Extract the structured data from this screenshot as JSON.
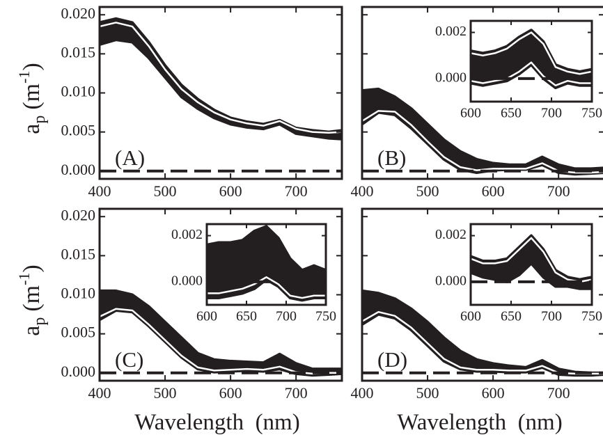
{
  "chart_data": [
    {
      "type": "line",
      "label": "(A)",
      "zero_line": true,
      "xlim": [
        400,
        770
      ],
      "ylim": [
        -0.001,
        0.021
      ],
      "xticks": [
        400,
        500,
        600,
        700
      ],
      "yticks": [
        {
          "value": 0,
          "label": "0.000"
        },
        {
          "value": 0.005,
          "label": "0.005"
        },
        {
          "value": 0.01,
          "label": "0.010"
        },
        {
          "value": 0.015,
          "label": "0.015"
        },
        {
          "value": 0.02,
          "label": "0.020"
        }
      ],
      "ytick_labels": true,
      "ylabel": {
        "base": "a",
        "sub": "p",
        "unit": "(m",
        "sup": "-1",
        "end": ")"
      },
      "x": [
        400,
        425,
        450,
        475,
        500,
        525,
        550,
        575,
        600,
        625,
        650,
        675,
        700,
        725,
        750,
        770
      ],
      "series": [
        {
          "color": "#231f20",
          "values": [
            0.019,
            0.0195,
            0.019,
            0.0165,
            0.0135,
            0.011,
            0.0092,
            0.0078,
            0.0068,
            0.0063,
            0.006,
            0.0065,
            0.0055,
            0.0052,
            0.005,
            0.0052
          ],
          "lower": [
            0.0162,
            0.0168,
            0.0165,
            0.0145,
            0.012,
            0.0095,
            0.008,
            0.0068,
            0.006,
            0.0056,
            0.0054,
            0.006,
            0.0048,
            0.0045,
            0.0042,
            0.0041
          ]
        },
        {
          "color": "#ffffff",
          "values": [
            0.0185,
            0.019,
            0.0185,
            0.016,
            0.013,
            0.0105,
            0.0088,
            0.0075,
            0.0066,
            0.0061,
            0.0058,
            0.0064,
            0.0054,
            0.005,
            0.0049,
            0.005
          ]
        }
      ]
    },
    {
      "type": "line",
      "label": "(B)",
      "zero_line": true,
      "xlim": [
        400,
        770
      ],
      "ylim": [
        -0.001,
        0.021
      ],
      "xticks": [
        400,
        500,
        600,
        700
      ],
      "yticks": [
        0,
        0.005,
        0.01,
        0.015,
        0.02
      ],
      "ytick_labels": false,
      "x": [
        400,
        425,
        450,
        475,
        500,
        525,
        550,
        575,
        600,
        625,
        650,
        675,
        700,
        725,
        750,
        770
      ],
      "series": [
        {
          "color": "#231f20",
          "values": [
            0.0103,
            0.0105,
            0.0095,
            0.008,
            0.006,
            0.004,
            0.0025,
            0.0015,
            0.001,
            0.0008,
            0.0008,
            0.0018,
            0.0008,
            0.0003,
            0.0003,
            0.0004
          ],
          "lower": [
            0.006,
            0.0075,
            0.0072,
            0.0055,
            0.0035,
            0.0015,
            0.0002,
            -0.0002,
            0.0001,
            0.0002,
            0.0002,
            0.0008,
            -0.0002,
            -0.0004,
            -0.0003,
            -0.0002
          ]
        },
        {
          "color": "#ffffff",
          "values": [
            0.0064,
            0.0077,
            0.0076,
            0.0059,
            0.0038,
            0.0018,
            0.0005,
            0.0001,
            0.0003,
            0.0003,
            0.0003,
            0.001,
            0.0,
            -0.0002,
            -0.0002,
            -0.0001
          ]
        }
      ]
    },
    {
      "type": "line",
      "label": "(C)",
      "zero_line": true,
      "xlim": [
        400,
        770
      ],
      "ylim": [
        -0.001,
        0.021
      ],
      "xticks": [
        400,
        500,
        600,
        700
      ],
      "yticks": [
        {
          "value": 0,
          "label": "0.000"
        },
        {
          "value": 0.005,
          "label": "0.005"
        },
        {
          "value": 0.01,
          "label": "0.010"
        },
        {
          "value": 0.015,
          "label": "0.015"
        },
        {
          "value": 0.02,
          "label": "0.020"
        }
      ],
      "ytick_labels": true,
      "ylabel": {
        "base": "a",
        "sub": "p",
        "unit": "(m",
        "sup": "-1",
        "end": ")"
      },
      "xlabel": "Wavelength  (nm)",
      "x": [
        400,
        425,
        450,
        475,
        500,
        525,
        550,
        575,
        600,
        625,
        650,
        675,
        700,
        725,
        750,
        770
      ],
      "series": [
        {
          "color": "#231f20",
          "values": [
            0.0105,
            0.0105,
            0.01,
            0.0085,
            0.0065,
            0.0045,
            0.0025,
            0.0017,
            0.0015,
            0.0014,
            0.0013,
            0.0024,
            0.0012,
            0.0005,
            0.0005,
            0.0005
          ],
          "lower": [
            0.0068,
            0.008,
            0.0078,
            0.006,
            0.004,
            0.002,
            0.0005,
            0.0001,
            0.0002,
            0.0003,
            0.0002,
            0.0005,
            -0.0001,
            -0.0003,
            -0.0002,
            -0.0001
          ]
        },
        {
          "color": "#ffffff",
          "values": [
            0.0072,
            0.0082,
            0.008,
            0.0062,
            0.0042,
            0.0022,
            0.0007,
            0.0003,
            0.0004,
            0.0005,
            0.0004,
            0.0008,
            0.0001,
            -0.0001,
            0.0,
            0.0
          ]
        }
      ]
    },
    {
      "type": "line",
      "label": "(D)",
      "zero_line": true,
      "xlim": [
        400,
        770
      ],
      "ylim": [
        -0.001,
        0.021
      ],
      "xticks": [
        400,
        500,
        600,
        700
      ],
      "yticks": [
        0,
        0.005,
        0.01,
        0.015,
        0.02
      ],
      "ytick_labels": false,
      "xlabel": "Wavelength  (nm)",
      "x": [
        400,
        425,
        450,
        475,
        500,
        525,
        550,
        575,
        600,
        625,
        650,
        675,
        700,
        725,
        750,
        770
      ],
      "series": [
        {
          "color": "#231f20",
          "values": [
            0.0105,
            0.0102,
            0.0095,
            0.0082,
            0.0065,
            0.0045,
            0.0028,
            0.0017,
            0.0012,
            0.0009,
            0.0007,
            0.0016,
            0.0005,
            0.0001,
            0.0,
            0.0
          ],
          "lower": [
            0.0062,
            0.0075,
            0.007,
            0.0055,
            0.0035,
            0.0015,
            0.0005,
            0.0002,
            0.0002,
            0.0001,
            0.0001,
            0.0007,
            -0.0002,
            -0.0003,
            -0.0003,
            -0.0002
          ]
        },
        {
          "color": "#ffffff",
          "values": [
            0.0066,
            0.0078,
            0.0073,
            0.0058,
            0.0038,
            0.0018,
            0.0007,
            0.0004,
            0.0004,
            0.0003,
            0.0003,
            0.0009,
            0.0,
            -0.0001,
            -0.0001,
            -0.0001
          ]
        }
      ]
    },
    {
      "type": "line",
      "zero_line": true,
      "xlim": [
        600,
        750
      ],
      "ylim": [
        -0.001,
        0.0025
      ],
      "xticks": [
        600,
        650,
        700,
        750
      ],
      "yticks": [
        {
          "value": 0,
          "label": "0.000"
        },
        {
          "value": 0.002,
          "label": "0.002"
        }
      ],
      "ytick_labels": true,
      "x": [
        600,
        615,
        630,
        645,
        660,
        675,
        690,
        705,
        720,
        735,
        750
      ],
      "series": [
        {
          "color": "#231f20",
          "values": [
            0.0012,
            0.0011,
            0.0012,
            0.0014,
            0.0018,
            0.0021,
            0.0016,
            0.0006,
            0.0004,
            0.0003,
            0.0004
          ],
          "lower": [
            -0.0002,
            -0.0003,
            -0.0002,
            -0.0001,
            0.0002,
            0.0006,
            0.0,
            -0.0004,
            -0.0002,
            -0.0003,
            -0.0003
          ]
        },
        {
          "color": "#ffffff",
          "values": [
            0.0011,
            0.001,
            0.0011,
            0.0013,
            0.0017,
            0.002,
            0.0015,
            0.0005,
            0.0003,
            0.0002,
            0.0003
          ]
        },
        {
          "color": "#ffffff",
          "values": [
            -0.0001,
            -0.0002,
            -0.0001,
            0.0,
            0.0003,
            0.0007,
            0.0001,
            -0.0003,
            -0.0001,
            -0.0002,
            -0.0002
          ]
        }
      ]
    },
    {
      "type": "line",
      "zero_line": true,
      "xlim": [
        600,
        750
      ],
      "ylim": [
        -0.001,
        0.0025
      ],
      "xticks": [
        600,
        650,
        700,
        750
      ],
      "yticks": [
        {
          "value": 0,
          "label": "0.000"
        },
        {
          "value": 0.002,
          "label": "0.002"
        }
      ],
      "ytick_labels": true,
      "x": [
        600,
        615,
        630,
        645,
        660,
        675,
        690,
        705,
        720,
        735,
        750
      ],
      "series": [
        {
          "color": "#231f20",
          "values": [
            0.0016,
            0.0017,
            0.0017,
            0.0018,
            0.0022,
            0.0024,
            0.0019,
            0.001,
            0.0005,
            0.0007,
            0.0005
          ],
          "lower": [
            -0.0007,
            -0.0007,
            -0.0006,
            -0.0005,
            -0.0003,
            0.0001,
            -0.0002,
            -0.0007,
            -0.0008,
            -0.0007,
            -0.0007
          ]
        },
        {
          "color": "#ffffff",
          "values": [
            -0.0005,
            -0.0005,
            -0.0004,
            -0.0003,
            -0.0001,
            0.0002,
            -0.0001,
            -0.0006,
            -0.0007,
            -0.0006,
            -0.0006
          ]
        }
      ]
    },
    {
      "type": "line",
      "zero_line": true,
      "xlim": [
        600,
        750
      ],
      "ylim": [
        -0.001,
        0.0025
      ],
      "xticks": [
        600,
        650,
        700,
        750
      ],
      "yticks": [
        {
          "value": 0,
          "label": "0.000"
        },
        {
          "value": 0.002,
          "label": "0.002"
        }
      ],
      "ytick_labels": true,
      "x": [
        600,
        615,
        630,
        645,
        660,
        675,
        690,
        705,
        720,
        735,
        750
      ],
      "series": [
        {
          "color": "#231f20",
          "values": [
            0.0011,
            0.0009,
            0.0009,
            0.001,
            0.0015,
            0.002,
            0.0014,
            0.0005,
            0.0002,
            0.0001,
            0.0002
          ],
          "lower": [
            0.0004,
            0.0002,
            0.0001,
            0.0,
            0.0003,
            0.0008,
            0.0002,
            -0.0002,
            -0.0002,
            -0.0003,
            -0.0003
          ]
        },
        {
          "color": "#ffffff",
          "values": [
            0.001,
            0.0008,
            0.0008,
            0.0009,
            0.0014,
            0.0019,
            0.0013,
            0.0004,
            0.0001,
            0.0,
            0.0001
          ]
        }
      ]
    }
  ]
}
